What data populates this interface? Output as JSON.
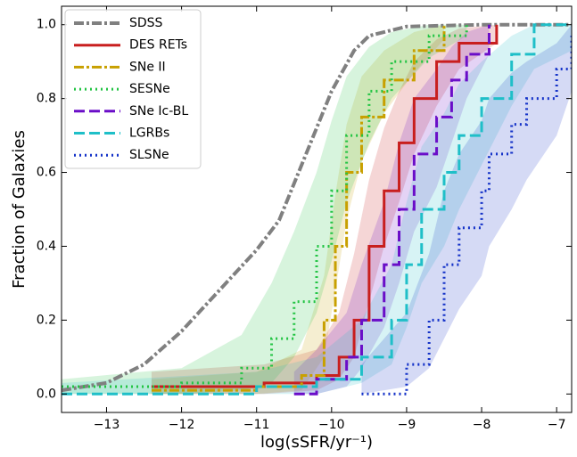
{
  "chart_data": {
    "type": "step-cdf",
    "xlabel": "log(sSFR/yr⁻¹)",
    "ylabel": "Fraction of Galaxies",
    "xlim": [
      -13.6,
      -6.8
    ],
    "ylim": [
      -0.05,
      1.05
    ],
    "xticks": [
      {
        "value": -13,
        "label": "−13"
      },
      {
        "value": -12,
        "label": "−12"
      },
      {
        "value": -11,
        "label": "−11"
      },
      {
        "value": -10,
        "label": "−10"
      },
      {
        "value": -9,
        "label": "−9"
      },
      {
        "value": -8,
        "label": "−8"
      },
      {
        "value": -7,
        "label": "−7"
      }
    ],
    "yticks": [
      {
        "value": 0,
        "label": "0.0"
      },
      0.2,
      0.4,
      0.6,
      0.8,
      {
        "value": 1,
        "label": "1.0"
      }
    ],
    "legend": "upper left",
    "series": [
      {
        "name": "SDSS",
        "color": "#808080",
        "dash": "dashdot",
        "step": false,
        "x": [
          -13.6,
          -13,
          -12.5,
          -12,
          -11.5,
          -11,
          -10.7,
          -10.5,
          -10.2,
          -10,
          -9.7,
          -9.5,
          -9,
          -8,
          -6.8
        ],
        "values": [
          0.01,
          0.03,
          0.08,
          0.17,
          0.28,
          0.39,
          0.47,
          0.57,
          0.72,
          0.82,
          0.93,
          0.97,
          0.995,
          1,
          1
        ]
      },
      {
        "name": "DES RETs",
        "color": "#c81e1e",
        "dash": "solid",
        "step": true,
        "x": [
          -12.4,
          -10.9,
          -10.2,
          -9.9,
          -9.7,
          -9.5,
          -9.3,
          -9.1,
          -8.9,
          -8.6,
          -8.3,
          -7.8
        ],
        "values": [
          0.02,
          0.03,
          0.05,
          0.1,
          0.2,
          0.4,
          0.55,
          0.68,
          0.8,
          0.9,
          0.95,
          1.0
        ],
        "band_lower": [
          0,
          0,
          0.01,
          0.04,
          0.1,
          0.25,
          0.4,
          0.52,
          0.65,
          0.78,
          0.88,
          0.95
        ],
        "band_upper": [
          0.06,
          0.08,
          0.12,
          0.22,
          0.38,
          0.58,
          0.72,
          0.82,
          0.9,
          0.96,
          0.99,
          1.0
        ]
      },
      {
        "name": "SNe II",
        "color": "#c8a000",
        "dash": "dashdot",
        "step": true,
        "x": [
          -12.4,
          -11,
          -10.4,
          -10.1,
          -9.95,
          -9.8,
          -9.6,
          -9.3,
          -8.9,
          -8.5
        ],
        "values": [
          0.01,
          0.02,
          0.05,
          0.2,
          0.4,
          0.6,
          0.75,
          0.85,
          0.93,
          1.0
        ],
        "band_lower": [
          0,
          0,
          0.01,
          0.1,
          0.28,
          0.47,
          0.63,
          0.76,
          0.87,
          0.96
        ],
        "band_upper": [
          0.04,
          0.06,
          0.12,
          0.32,
          0.54,
          0.73,
          0.86,
          0.93,
          0.98,
          1.0
        ]
      },
      {
        "name": "SESNe",
        "color": "#22c443",
        "dash": "dotted",
        "step": true,
        "x": [
          -13.6,
          -12,
          -11.2,
          -10.8,
          -10.5,
          -10.2,
          -10,
          -9.8,
          -9.5,
          -9.2,
          -8.7,
          -8.2
        ],
        "values": [
          0.02,
          0.03,
          0.07,
          0.15,
          0.25,
          0.4,
          0.55,
          0.7,
          0.82,
          0.9,
          0.97,
          1.0
        ],
        "band_lower": [
          0,
          0,
          0.01,
          0.03,
          0.1,
          0.22,
          0.36,
          0.52,
          0.68,
          0.8,
          0.91,
          0.97
        ],
        "band_upper": [
          0.04,
          0.07,
          0.16,
          0.3,
          0.44,
          0.6,
          0.74,
          0.86,
          0.94,
          0.98,
          1.0,
          1.0
        ]
      },
      {
        "name": "SNe Ic-BL",
        "color": "#6a0dc8",
        "dash": "dashed",
        "step": true,
        "x": [
          -10.5,
          -10.2,
          -9.8,
          -9.6,
          -9.3,
          -9.1,
          -8.9,
          -8.6,
          -8.4,
          -8.2,
          -7.9
        ],
        "values": [
          0,
          0.04,
          0.1,
          0.2,
          0.35,
          0.5,
          0.65,
          0.75,
          0.85,
          0.92,
          1.0
        ],
        "band_lower": [
          0,
          0,
          0.02,
          0.07,
          0.18,
          0.3,
          0.44,
          0.56,
          0.68,
          0.8,
          0.92
        ],
        "band_upper": [
          0.06,
          0.12,
          0.22,
          0.35,
          0.52,
          0.68,
          0.8,
          0.88,
          0.94,
          0.98,
          1.0
        ]
      },
      {
        "name": "LGRBs",
        "color": "#1fbfc8",
        "dash": "dashed",
        "step": true,
        "x": [
          -13.6,
          -11,
          -10.2,
          -9.6,
          -9.2,
          -9,
          -8.8,
          -8.5,
          -8.3,
          -8,
          -7.6,
          -7.3,
          -6.8
        ],
        "values": [
          0,
          0.02,
          0.04,
          0.1,
          0.2,
          0.35,
          0.5,
          0.6,
          0.7,
          0.8,
          0.92,
          1.0,
          1.0
        ],
        "band_lower": [
          0,
          0,
          0,
          0.03,
          0.08,
          0.18,
          0.3,
          0.4,
          0.5,
          0.62,
          0.78,
          0.88,
          0.93
        ],
        "band_upper": [
          0.03,
          0.06,
          0.1,
          0.2,
          0.35,
          0.52,
          0.67,
          0.76,
          0.84,
          0.9,
          0.97,
          1.0,
          1.0
        ]
      },
      {
        "name": "SLSNe",
        "color": "#1432c8",
        "dash": "dotted",
        "step": true,
        "x": [
          -9.6,
          -9,
          -8.7,
          -8.5,
          -8.3,
          -8,
          -7.9,
          -7.6,
          -7.4,
          -7,
          -6.8
        ],
        "values": [
          0,
          0.08,
          0.2,
          0.35,
          0.45,
          0.55,
          0.65,
          0.73,
          0.8,
          0.88,
          0.97
        ],
        "band_lower": [
          0,
          0.02,
          0.07,
          0.15,
          0.23,
          0.32,
          0.4,
          0.5,
          0.58,
          0.7,
          0.82
        ],
        "band_upper": [
          0.08,
          0.22,
          0.38,
          0.55,
          0.65,
          0.74,
          0.8,
          0.87,
          0.9,
          0.95,
          1.0
        ]
      }
    ]
  }
}
